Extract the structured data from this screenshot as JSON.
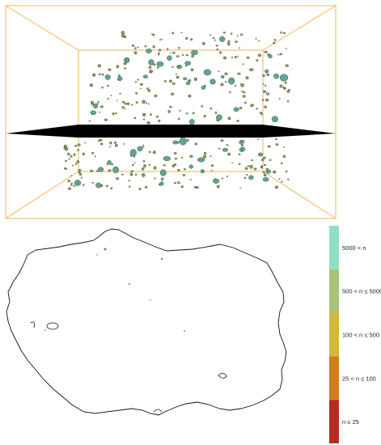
{
  "legend": {
    "bins": [
      {
        "label": "5000 < n",
        "color": "#8fe0c2"
      },
      {
        "label": "500 < n ≤ 5000",
        "color": "#aac27a"
      },
      {
        "label": "100 < n ≤ 500",
        "color": "#d4b63a"
      },
      {
        "label": "25 < n ≤ 100",
        "color": "#cf7d22"
      },
      {
        "label": "n ≤ 25",
        "color": "#b52c22"
      }
    ]
  },
  "colors": {
    "box_edges": "#f2b35a",
    "slice_plane": "#000000",
    "outline": "#111111",
    "large_pore_fill": "#5ea593",
    "medium_pore_fill": "#8f9a58",
    "pore_edge": "#3f4a2a"
  }
}
